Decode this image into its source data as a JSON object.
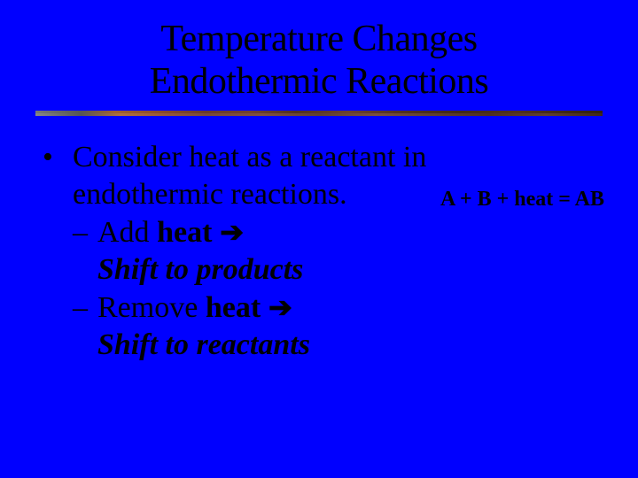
{
  "colors": {
    "background": "#0000ff",
    "text": "#000000"
  },
  "typography": {
    "family": "Times New Roman",
    "title_size_pt": 42,
    "body_size_pt": 34,
    "equation_size_pt": 24
  },
  "title": {
    "line1": "Temperature Changes",
    "line2": "Endothermic Reactions"
  },
  "bullet": {
    "marker": "•",
    "text_line1": "Consider heat as a reactant in",
    "text_line2": "endothermic reactions.",
    "equation": "A + B + heat = AB"
  },
  "sub": {
    "dash": "–",
    "add_prefix": "Add ",
    "heat": "heat",
    "arrow": " ➔",
    "shift_products": "Shift to products",
    "remove_prefix": "Remove ",
    "shift_reactants": "Shift to reactants"
  }
}
